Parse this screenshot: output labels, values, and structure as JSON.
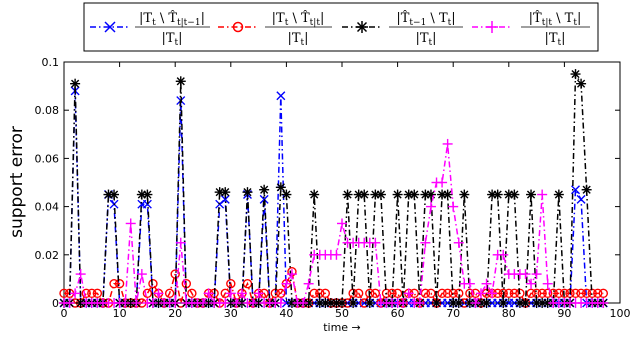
{
  "chart_data": {
    "type": "line",
    "xlabel": "time →",
    "ylabel": "support error",
    "xlim": [
      0,
      100
    ],
    "ylim": [
      0,
      0.1
    ],
    "xticks": [
      "0",
      "10",
      "20",
      "30",
      "40",
      "50",
      "60",
      "70",
      "80",
      "90",
      "100"
    ],
    "yticks": [
      "0",
      "0.02",
      "0.04",
      "0.06",
      "0.08",
      "0.1"
    ],
    "grid": false,
    "legend_placement": "top",
    "series": [
      {
        "name": "|T_t \\ T̂_t|t−1| / |T_t|",
        "color": "#0000ff",
        "marker": "x",
        "dash": "dash-dot",
        "x": [
          0,
          1,
          2,
          3,
          4,
          5,
          6,
          7,
          8,
          9,
          10,
          11,
          12,
          13,
          14,
          15,
          16,
          17,
          18,
          19,
          20,
          21,
          22,
          23,
          24,
          25,
          26,
          27,
          28,
          29,
          30,
          31,
          32,
          33,
          34,
          35,
          36,
          37,
          38,
          39,
          40,
          41,
          42,
          43,
          44,
          45,
          46,
          47,
          48,
          49,
          50,
          51,
          52,
          53,
          54,
          55,
          56,
          57,
          58,
          59,
          60,
          61,
          62,
          63,
          64,
          65,
          66,
          67,
          68,
          69,
          70,
          71,
          72,
          73,
          74,
          75,
          76,
          77,
          78,
          79,
          80,
          81,
          82,
          83,
          84,
          85,
          86,
          87,
          88,
          89,
          90,
          91,
          92,
          93,
          94,
          95,
          96,
          97
        ],
        "y": [
          0,
          0,
          0.088,
          0,
          0,
          0,
          0,
          0,
          0.045,
          0.041,
          0,
          0,
          0,
          0,
          0.041,
          0.041,
          0,
          0,
          0,
          0,
          0,
          0.084,
          0,
          0,
          0,
          0,
          0,
          0,
          0.041,
          0.043,
          0,
          0,
          0,
          0.045,
          0,
          0,
          0.043,
          0,
          0,
          0.086,
          0,
          0,
          0,
          0,
          0,
          0,
          0,
          0,
          0,
          0,
          0,
          0,
          0,
          0,
          0,
          0,
          0,
          0,
          0,
          0,
          0,
          0,
          0,
          0,
          0,
          0,
          0,
          0,
          0,
          0,
          0,
          0,
          0,
          0,
          0,
          0,
          0,
          0,
          0,
          0,
          0,
          0,
          0,
          0,
          0,
          0,
          0,
          0,
          0,
          0,
          0,
          0,
          0.047,
          0.043,
          0,
          0,
          0,
          0
        ]
      },
      {
        "name": "|T_t \\ T̂_t|t| / |T_t|",
        "color": "#ff0000",
        "marker": "o",
        "dash": "dash-dot",
        "x": [
          0,
          1,
          2,
          3,
          4,
          5,
          6,
          7,
          8,
          9,
          10,
          11,
          12,
          13,
          14,
          15,
          16,
          17,
          18,
          19,
          20,
          21,
          22,
          23,
          24,
          25,
          26,
          27,
          28,
          29,
          30,
          31,
          32,
          33,
          34,
          35,
          36,
          37,
          38,
          39,
          40,
          41,
          42,
          43,
          44,
          45,
          46,
          47,
          48,
          49,
          50,
          51,
          52,
          53,
          54,
          55,
          56,
          57,
          58,
          59,
          60,
          61,
          62,
          63,
          64,
          65,
          66,
          67,
          68,
          69,
          70,
          71,
          72,
          73,
          74,
          75,
          76,
          77,
          78,
          79,
          80,
          81,
          82,
          83,
          84,
          85,
          86,
          87,
          88,
          89,
          90,
          91,
          92,
          93,
          94,
          95,
          96,
          97
        ],
        "y": [
          0.004,
          0.004,
          0,
          0,
          0.004,
          0.004,
          0.004,
          0,
          0,
          0.008,
          0.008,
          0,
          0,
          0,
          0,
          0.004,
          0.008,
          0.004,
          0,
          0.004,
          0.012,
          0,
          0.008,
          0.004,
          0,
          0,
          0.004,
          0.004,
          0,
          0.004,
          0.008,
          0,
          0.004,
          0.008,
          0,
          0.004,
          0.004,
          0,
          0.004,
          0.004,
          0.008,
          0.013,
          0,
          0,
          0,
          0.004,
          0.004,
          0.004,
          0,
          0,
          0,
          0,
          0.004,
          0.004,
          0,
          0.004,
          0.004,
          0,
          0.004,
          0.004,
          0.004,
          0,
          0.004,
          0.004,
          0,
          0.004,
          0.004,
          0,
          0.004,
          0.004,
          0.004,
          0.004,
          0,
          0.004,
          0.004,
          0,
          0.004,
          0.004,
          0.004,
          0.004,
          0.004,
          0.004,
          0.004,
          0,
          0.004,
          0.004,
          0.004,
          0.004,
          0.004,
          0.004,
          0.004,
          0.004,
          0.004,
          0.004,
          0.004,
          0.004,
          0.004,
          0.004
        ]
      },
      {
        "name": "|T̂_t−1 \\ T_t| / |T_t|",
        "color": "#000000",
        "marker": "*",
        "dash": "dash-dot",
        "x": [
          0,
          1,
          2,
          3,
          4,
          5,
          6,
          7,
          8,
          9,
          10,
          11,
          12,
          13,
          14,
          15,
          16,
          17,
          18,
          19,
          20,
          21,
          22,
          23,
          24,
          25,
          26,
          27,
          28,
          29,
          30,
          31,
          32,
          33,
          34,
          35,
          36,
          37,
          38,
          39,
          40,
          41,
          42,
          43,
          44,
          45,
          46,
          47,
          48,
          49,
          50,
          51,
          52,
          53,
          54,
          55,
          56,
          57,
          58,
          59,
          60,
          61,
          62,
          63,
          64,
          65,
          66,
          67,
          68,
          69,
          70,
          71,
          72,
          73,
          74,
          75,
          76,
          77,
          78,
          79,
          80,
          81,
          82,
          83,
          84,
          85,
          86,
          87,
          88,
          89,
          90,
          91,
          92,
          93,
          94,
          95,
          96,
          97
        ],
        "y": [
          0,
          0,
          0.091,
          0,
          0,
          0,
          0,
          0,
          0.045,
          0.045,
          0,
          0,
          0,
          0,
          0.045,
          0.045,
          0,
          0,
          0,
          0,
          0,
          0.092,
          0,
          0,
          0,
          0,
          0,
          0,
          0.046,
          0.046,
          0,
          0,
          0,
          0.046,
          0,
          0,
          0.047,
          0,
          0,
          0.048,
          0.045,
          0,
          0,
          0,
          0,
          0.045,
          0,
          0,
          0,
          0,
          0,
          0.045,
          0,
          0.045,
          0.045,
          0,
          0.045,
          0.045,
          0,
          0,
          0.045,
          0,
          0.045,
          0.045,
          0,
          0.045,
          0.045,
          0,
          0.045,
          0.045,
          0,
          0,
          0.045,
          0,
          0,
          0,
          0,
          0.045,
          0.045,
          0,
          0.045,
          0.045,
          0,
          0,
          0.045,
          0,
          0,
          0,
          0,
          0.045,
          0,
          0,
          0.095,
          0.091,
          0.047,
          0,
          0,
          0
        ]
      },
      {
        "name": "|T̂_t|t \\ T_t| / |T_t|",
        "color": "#ff00ff",
        "marker": "+",
        "dash": "dash-dot",
        "x": [
          0,
          1,
          2,
          3,
          4,
          5,
          6,
          7,
          8,
          9,
          10,
          11,
          12,
          13,
          14,
          15,
          16,
          17,
          18,
          19,
          20,
          21,
          22,
          23,
          24,
          25,
          26,
          27,
          28,
          29,
          30,
          31,
          32,
          33,
          34,
          35,
          36,
          37,
          38,
          39,
          40,
          41,
          42,
          43,
          44,
          45,
          46,
          47,
          48,
          49,
          50,
          51,
          52,
          53,
          54,
          55,
          56,
          57,
          58,
          59,
          60,
          61,
          62,
          63,
          64,
          65,
          66,
          67,
          68,
          69,
          70,
          71,
          72,
          73,
          74,
          75,
          76,
          77,
          78,
          79,
          80,
          81,
          82,
          83,
          84,
          85,
          86,
          87,
          88,
          89,
          90,
          91,
          92,
          93,
          94,
          95,
          96,
          97
        ],
        "y": [
          0,
          0,
          0.004,
          0.012,
          0,
          0,
          0,
          0,
          0,
          0,
          0,
          0,
          0.033,
          0,
          0.012,
          0,
          0,
          0.004,
          0,
          0,
          0,
          0.025,
          0,
          0,
          0,
          0,
          0.004,
          0,
          0,
          0,
          0.004,
          0,
          0.004,
          0,
          0,
          0.004,
          0,
          0,
          0,
          0,
          0.008,
          0.012,
          0,
          0,
          0.008,
          0.02,
          0.02,
          0.02,
          0.02,
          0.02,
          0.033,
          0.025,
          0.025,
          0.025,
          0.025,
          0.025,
          0.025,
          0,
          0,
          0,
          0,
          0,
          0.004,
          0,
          0,
          0.025,
          0.04,
          0.05,
          0.05,
          0.066,
          0.04,
          0.025,
          0.008,
          0.008,
          0,
          0.004,
          0.008,
          0.004,
          0.02,
          0.02,
          0.012,
          0.012,
          0.012,
          0.012,
          0.008,
          0.012,
          0.045,
          0.008,
          0,
          0,
          0,
          0,
          0,
          0,
          0,
          0,
          0,
          0
        ]
      }
    ]
  }
}
